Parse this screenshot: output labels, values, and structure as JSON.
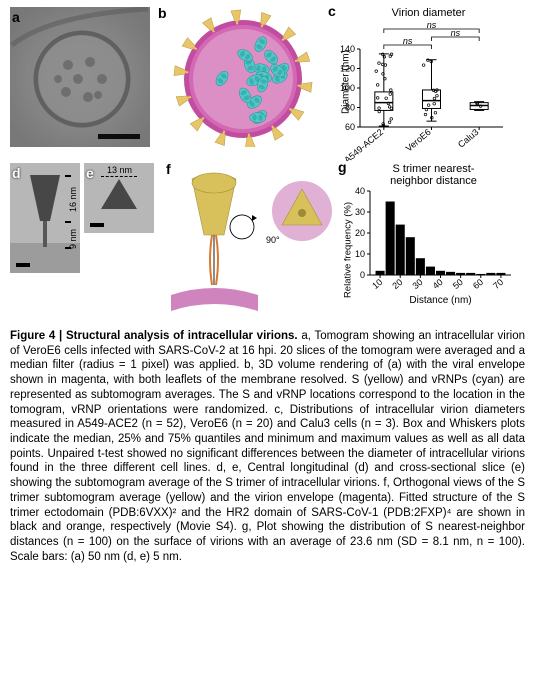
{
  "panels": {
    "a": {
      "label": "a",
      "scalebar_nm": 50
    },
    "b": {
      "label": "b",
      "envelope_color": "#c24da0",
      "envelope_inner": "#d66fb7",
      "spike_color": "#e8c56a",
      "vrnp_color": "#52c7c7"
    },
    "c": {
      "label": "c",
      "title": "Virion diameter",
      "ylabel": "Diameter (nm)",
      "ylim": [
        60,
        140
      ],
      "yticks": [
        60,
        80,
        100,
        120,
        140
      ],
      "categories": [
        "A549-ACE2",
        "VeroE6",
        "Calu3"
      ],
      "box": [
        {
          "median": 85,
          "q1": 77,
          "q3": 96,
          "min": 61,
          "max": 135
        },
        {
          "median": 87,
          "q1": 79,
          "q3": 98,
          "min": 66,
          "max": 129
        },
        {
          "median": 82,
          "q1": 78,
          "q3": 85,
          "min": 77,
          "max": 86
        }
      ],
      "ns_pairs": [
        [
          0,
          1
        ],
        [
          1,
          2
        ],
        [
          0,
          2
        ]
      ],
      "ns_text": "ns",
      "axis_color": "#000000",
      "box_fill": "#ffffff",
      "point_color": "#000000"
    },
    "d": {
      "label": "d",
      "heights_nm": {
        "head": 16,
        "stalk": 9
      }
    },
    "e": {
      "label": "e",
      "width_nm": 13
    },
    "f": {
      "label": "f",
      "spike_color": "#d8c05a",
      "envelope_color": "#c86fb3",
      "hr2_color": "#d97a2e",
      "hr2_fit_color": "#000000",
      "rotation_deg": 90
    },
    "g": {
      "label": "g",
      "title": "S trimer nearest-\nneighbor distance",
      "xlabel": "Distance (nm)",
      "ylabel": "Relative frequency (%)",
      "xlim": [
        5,
        75
      ],
      "ylim": [
        0,
        40
      ],
      "yticks": [
        0,
        10,
        20,
        30,
        40
      ],
      "xticks": [
        10,
        20,
        30,
        40,
        50,
        60,
        70
      ],
      "bar_color": "#000000",
      "axis_color": "#000000",
      "bins": [
        10,
        15,
        20,
        25,
        30,
        35,
        40,
        45,
        50,
        55,
        60,
        65,
        70
      ],
      "freq": [
        2,
        35,
        24,
        18,
        8,
        4,
        2,
        1.5,
        1,
        1,
        0.5,
        1,
        1
      ]
    }
  },
  "caption": {
    "head": "Figure 4 | Structural analysis of intracellular virions.",
    "body": " a, Tomogram showing an intracellular virion of VeroE6 cells infected with SARS-CoV-2 at 16 hpi. 20 slices of the tomogram were averaged and a median filter (radius = 1 pixel) was applied. b, 3D volume rendering of (a) with the viral envelope shown in magenta, with both leaflets of the membrane resolved. S (yellow) and vRNPs (cyan) are represented as subtomogram averages. The S and vRNP locations correspond to the location in the tomogram, vRNP orientations were randomized. c, Distributions of intracellular virion diameters measured in A549-ACE2 (n = 52), VeroE6 (n = 20) and Calu3 cells (n = 3). Box and Whiskers plots indicate the median, 25% and 75% quantiles and minimum and maximum values as well as all data points. Unpaired t-test showed no significant differences between the diameter of intracellular virions found in the three different cell lines. d, e, Central longitudinal (d) and cross-sectional slice (e) showing the subtomogram average of the S trimer of intracellular virions. f, Orthogonal views of the S trimer subtomogram average (yellow) and the virion envelope (magenta). Fitted structure of the S trimer ectodomain (PDB:6VXX)² and the HR2 domain of SARS-CoV-1 (PDB:2FXP)⁴ are shown in black and orange, respectively (Movie S4). g, Plot showing the distribution of S nearest-neighbor distances (n = 100) on the surface of virions with an average of 23.6 nm (SD = 8.1 nm, n = 100). Scale bars: (a) 50 nm (d, e) 5 nm."
  }
}
